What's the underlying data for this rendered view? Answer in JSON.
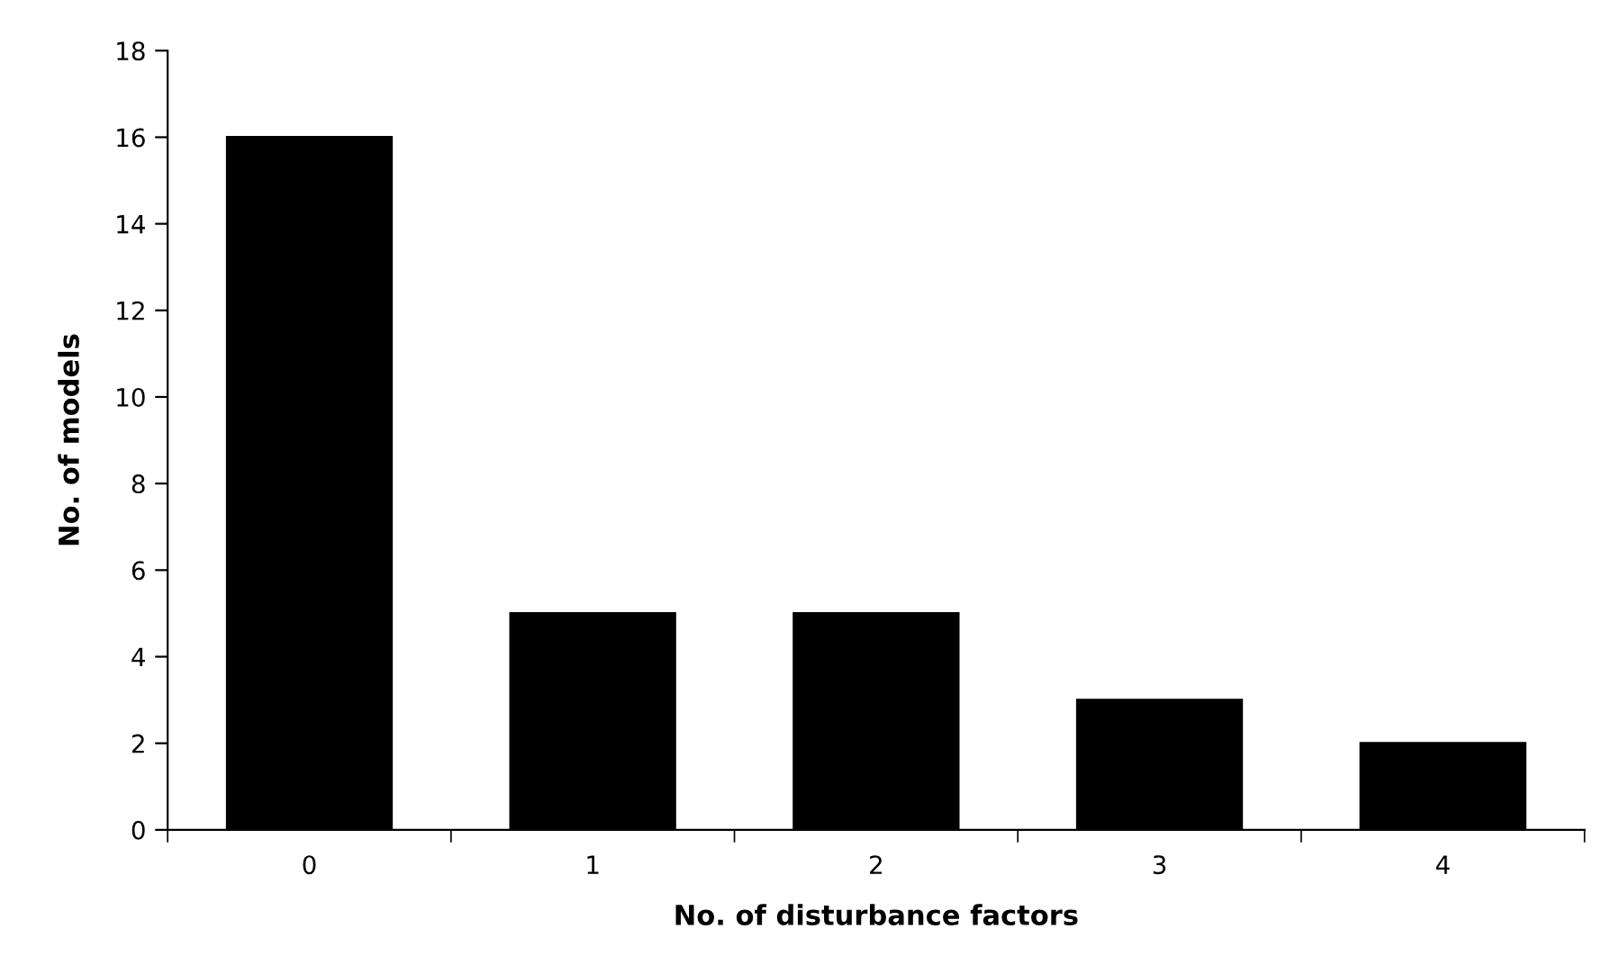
{
  "chart_data": {
    "type": "bar",
    "xlabel": "No. of disturbance factors",
    "ylabel": "No. of models",
    "categories": [
      "0",
      "1",
      "2",
      "3",
      "4"
    ],
    "values": [
      16,
      5,
      5,
      3,
      2
    ],
    "color": "#000000",
    "ylim": [
      0,
      18
    ],
    "yticks": [
      0,
      2,
      4,
      6,
      8,
      10,
      12,
      14,
      16,
      18
    ],
    "grid": false,
    "legend": false
  }
}
